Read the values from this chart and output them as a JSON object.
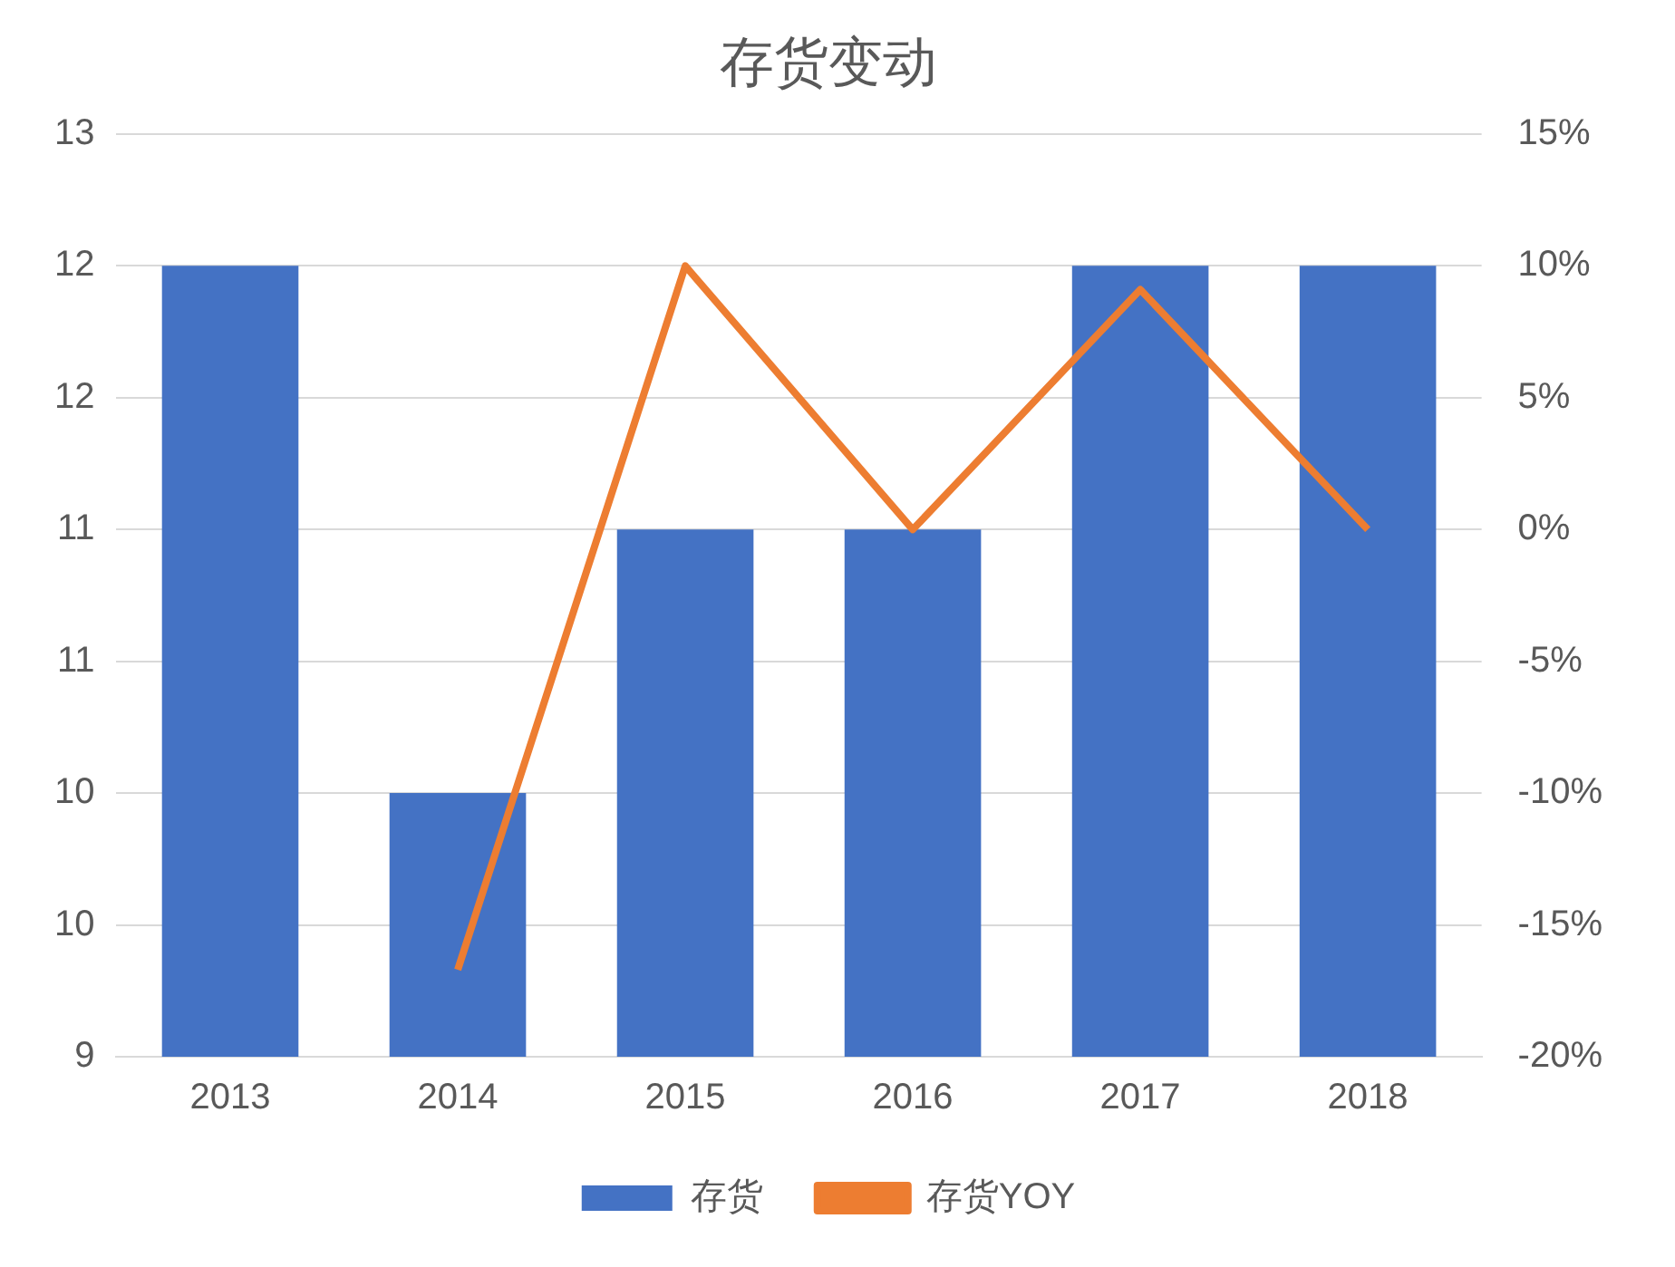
{
  "chart_data": {
    "type": "bar",
    "title": "存货变动",
    "categories": [
      "2013",
      "2014",
      "2015",
      "2016",
      "2017",
      "2018"
    ],
    "series": [
      {
        "name": "存货",
        "color": "#4472c4",
        "values": [
          12.429,
          10.143,
          11.286,
          11.286,
          12.429,
          12.429
        ]
      },
      {
        "name": "存货YOY",
        "type": "line",
        "axis": "y2",
        "color": "#ed7d31",
        "values": [
          null,
          -16.7,
          10,
          0,
          9.1,
          0
        ]
      }
    ],
    "ylim": [
      9,
      13
    ],
    "yticks": [
      {
        "value": 9,
        "label": "9"
      },
      {
        "value": 9.571,
        "label": "10"
      },
      {
        "value": 10.143,
        "label": "10"
      },
      {
        "value": 10.714,
        "label": "11"
      },
      {
        "value": 11.286,
        "label": "11"
      },
      {
        "value": 11.857,
        "label": "12"
      },
      {
        "value": 12.429,
        "label": "12"
      },
      {
        "value": 13,
        "label": "13"
      }
    ],
    "y2lim": [
      -20,
      15
    ],
    "y2ticks": [
      {
        "value": -20,
        "label": "-20%"
      },
      {
        "value": -15,
        "label": "-15%"
      },
      {
        "value": -10,
        "label": "-10%"
      },
      {
        "value": -5,
        "label": "-5%"
      },
      {
        "value": 0,
        "label": "0%"
      },
      {
        "value": 5,
        "label": "5%"
      },
      {
        "value": 10,
        "label": "10%"
      },
      {
        "value": 15,
        "label": "15%"
      }
    ],
    "grid": "y",
    "legend": "bottom",
    "marker": "none"
  }
}
